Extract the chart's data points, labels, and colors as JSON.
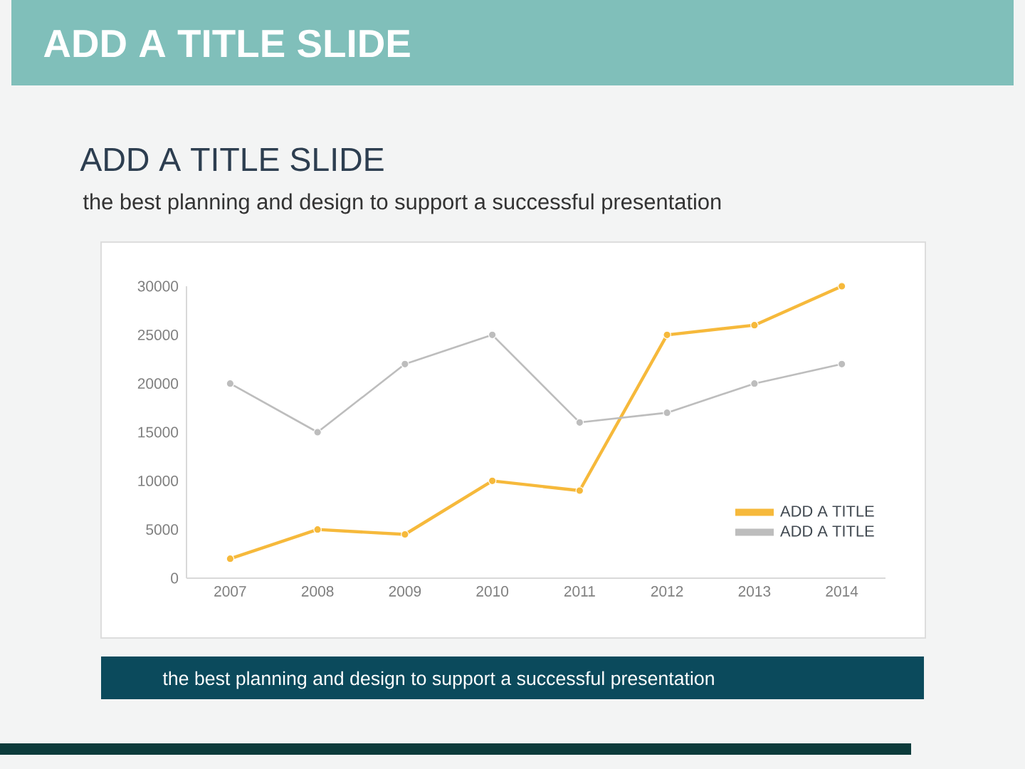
{
  "chart_data": {
    "type": "line",
    "title": "ADD A TITLE SLIDE",
    "subtitle": "the best planning and design to support a successful presentation",
    "annotations": [
      "ADD A TITLE SLIDE",
      "the best planning and design to support a successful presentation"
    ],
    "categories": [
      "2007",
      "2008",
      "2009",
      "2010",
      "2011",
      "2012",
      "2013",
      "2014"
    ],
    "series": [
      {
        "name": "ADD A TITLE",
        "color": "#f6b93b",
        "values": [
          2000,
          5000,
          4500,
          10000,
          9000,
          25000,
          26000,
          30000
        ]
      },
      {
        "name": "ADD A TITLE",
        "color": "#bdbdbd",
        "values": [
          20000,
          15000,
          22000,
          25000,
          16000,
          17000,
          20000,
          22000
        ]
      }
    ],
    "ylim": [
      0,
      30000
    ],
    "yticks": [
      0,
      5000,
      10000,
      15000,
      20000,
      25000,
      30000
    ],
    "legend": "bottom right",
    "marker": "circle",
    "line_style": "solid"
  }
}
